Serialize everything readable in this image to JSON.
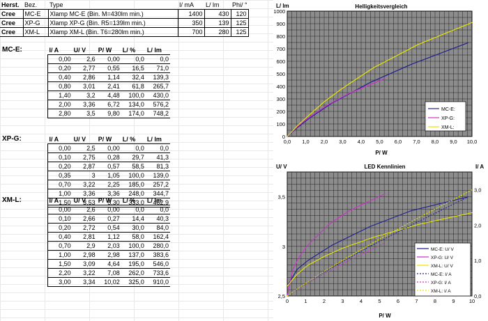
{
  "summary": {
    "headers": [
      "Herst.",
      "Bez.",
      "Type",
      "I/ mA",
      "L/ lm",
      "Phi/ °"
    ],
    "rows": [
      [
        "Cree",
        "MC-E",
        "Xlamp MC-E (Bin. M=430lm min.)",
        "1400",
        "430",
        "120"
      ],
      [
        "Cree",
        "XP-G",
        "Xlamp XP-G (Bin. R5=139lm min.)",
        "350",
        "139",
        "125"
      ],
      [
        "Cree",
        "XM-L",
        "Xlamp XM-L (Bin. T6=280lm min.)",
        "700",
        "280",
        "125"
      ]
    ]
  },
  "tables": [
    {
      "title": "MC-E:",
      "headers": [
        "I/ A",
        "U/ V",
        "P/ W",
        "L/ %",
        "L/ lm"
      ],
      "rows": [
        [
          "0,00",
          "2,6",
          "0,00",
          "0,0",
          "0,0"
        ],
        [
          "0,20",
          "2,77",
          "0,55",
          "16,5",
          "71,0"
        ],
        [
          "0,40",
          "2,86",
          "1,14",
          "32,4",
          "139,3"
        ],
        [
          "0,80",
          "3,01",
          "2,41",
          "61,8",
          "265,7"
        ],
        [
          "1,40",
          "3,2",
          "4,48",
          "100,0",
          "430,0"
        ],
        [
          "2,00",
          "3,36",
          "6,72",
          "134,0",
          "576,2"
        ],
        [
          "2,80",
          "3,5",
          "9,80",
          "174,0",
          "748,2"
        ]
      ]
    },
    {
      "title": "XP-G:",
      "headers": [
        "I/ A",
        "U/ V",
        "P/ W",
        "L/ %",
        "L/ lm"
      ],
      "rows": [
        [
          "0,00",
          "2,5",
          "0,00",
          "0,0",
          "0,0"
        ],
        [
          "0,10",
          "2,75",
          "0,28",
          "29,7",
          "41,3"
        ],
        [
          "0,20",
          "2,87",
          "0,57",
          "58,5",
          "81,3"
        ],
        [
          "0,35",
          "3",
          "1,05",
          "100,0",
          "139,0"
        ],
        [
          "0,70",
          "3,22",
          "2,25",
          "185,0",
          "257,2"
        ],
        [
          "1,00",
          "3,36",
          "3,36",
          "248,0",
          "344,7"
        ],
        [
          "1,50",
          "3,53",
          "5,30",
          "333,0",
          "462,9"
        ]
      ]
    },
    {
      "title": "XM-L:",
      "headers": [
        "I/ A",
        "U/ V",
        "P/ W",
        "L/ %",
        "L/ lm"
      ],
      "rows": [
        [
          "0,00",
          "2,6",
          "0,00",
          "0,0",
          "0,0"
        ],
        [
          "0,10",
          "2,66",
          "0,27",
          "14,4",
          "40,3"
        ],
        [
          "0,20",
          "2,72",
          "0,54",
          "30,0",
          "84,0"
        ],
        [
          "0,40",
          "2,81",
          "1,12",
          "58,0",
          "162,4"
        ],
        [
          "0,70",
          "2,9",
          "2,03",
          "100,0",
          "280,0"
        ],
        [
          "1,00",
          "2,98",
          "2,98",
          "137,0",
          "383,6"
        ],
        [
          "1,50",
          "3,09",
          "4,64",
          "195,0",
          "546,0"
        ],
        [
          "2,20",
          "3,22",
          "7,08",
          "262,0",
          "733,6"
        ],
        [
          "3,00",
          "3,34",
          "10,02",
          "325,0",
          "910,0"
        ]
      ]
    }
  ],
  "colors": {
    "mce": "#1f1f8f",
    "xpg": "#cc33cc",
    "xml": "#e6e600",
    "plot_bg": "#8c8c8c",
    "grid": "#222222"
  },
  "chart_data": [
    {
      "type": "line",
      "title": "Helligkeitsvergleich",
      "xlabel": "P/ W",
      "ylabel": "L/ lm",
      "xlim": [
        0,
        10
      ],
      "ylim": [
        0,
        1000
      ],
      "xticks": [
        "0,0",
        "1,0",
        "2,0",
        "3,0",
        "4,0",
        "5,0",
        "6,0",
        "7,0",
        "8,0",
        "9,0",
        "10,0"
      ],
      "yticks": [
        "0",
        "100",
        "200",
        "300",
        "400",
        "500",
        "600",
        "700",
        "800",
        "900",
        "1000"
      ],
      "legend": [
        "MC-E:",
        "XP-G:",
        "XM-L:"
      ],
      "series": [
        {
          "name": "MC-E:",
          "x": [
            0,
            0.55,
            1.14,
            2.41,
            4.48,
            6.72,
            9.8
          ],
          "y": [
            0,
            71,
            139.3,
            265.7,
            430,
            576.2,
            748.2
          ]
        },
        {
          "name": "XP-G:",
          "x": [
            0,
            0.28,
            0.57,
            1.05,
            2.25,
            3.36,
            5.3
          ],
          "y": [
            0,
            41.3,
            81.3,
            139,
            257.2,
            344.7,
            462.9
          ]
        },
        {
          "name": "XM-L:",
          "x": [
            0,
            0.27,
            0.54,
            1.12,
            2.03,
            2.98,
            4.64,
            7.08,
            10.02
          ],
          "y": [
            0,
            40.3,
            84,
            162.4,
            280,
            383.6,
            546,
            733.6,
            910
          ]
        }
      ]
    },
    {
      "type": "line",
      "title": "LED Kennlinien",
      "xlabel": "P/ W",
      "ylabel": "U/ V",
      "ylabel2": "I/ A",
      "xlim": [
        0,
        10
      ],
      "ylim": [
        2.5,
        3.75
      ],
      "ylim2": [
        0,
        3.5
      ],
      "xticks": [
        "0",
        "1",
        "2",
        "3",
        "4",
        "5",
        "6",
        "7",
        "8",
        "9",
        "10"
      ],
      "yticks": [
        "2,5",
        "3",
        "3,5"
      ],
      "yticks2": [
        "0,0",
        "1,0",
        "2,0",
        "3,0"
      ],
      "legend": [
        "MC-E: U/ V",
        "XP-G: U/ V",
        "XM-L: U/ V",
        "MC-E: I/ A",
        "XP-G: I/ A",
        "XM-L: I/ A"
      ],
      "series": [
        {
          "name": "MC-E: U/ V",
          "axis": "left",
          "x": [
            0,
            0.55,
            1.14,
            2.41,
            4.48,
            6.72,
            9.8
          ],
          "y": [
            2.6,
            2.77,
            2.86,
            3.01,
            3.2,
            3.36,
            3.5
          ]
        },
        {
          "name": "XP-G: U/ V",
          "axis": "left",
          "x": [
            0,
            0.28,
            0.57,
            1.05,
            2.25,
            3.36,
            5.3
          ],
          "y": [
            2.5,
            2.75,
            2.87,
            3,
            3.22,
            3.36,
            3.53
          ]
        },
        {
          "name": "XM-L: U/ V",
          "axis": "left",
          "x": [
            0,
            0.27,
            0.54,
            1.12,
            2.03,
            2.98,
            4.64,
            7.08,
            10.02
          ],
          "y": [
            2.6,
            2.66,
            2.72,
            2.81,
            2.9,
            2.98,
            3.09,
            3.22,
            3.34
          ]
        },
        {
          "name": "MC-E: I/ A",
          "axis": "right",
          "x": [
            0,
            0.55,
            1.14,
            2.41,
            4.48,
            6.72,
            9.8
          ],
          "y": [
            0,
            0.2,
            0.4,
            0.8,
            1.4,
            2.0,
            2.8
          ]
        },
        {
          "name": "XP-G: I/ A",
          "axis": "right",
          "x": [
            0,
            0.28,
            0.57,
            1.05,
            2.25,
            3.36,
            5.3
          ],
          "y": [
            0,
            0.1,
            0.2,
            0.35,
            0.7,
            1.0,
            1.5
          ]
        },
        {
          "name": "XM-L: I/ A",
          "axis": "right",
          "x": [
            0,
            0.27,
            0.54,
            1.12,
            2.03,
            2.98,
            4.64,
            7.08,
            10.02
          ],
          "y": [
            0,
            0.1,
            0.2,
            0.4,
            0.7,
            1.0,
            1.5,
            2.2,
            3.0
          ]
        }
      ]
    }
  ]
}
